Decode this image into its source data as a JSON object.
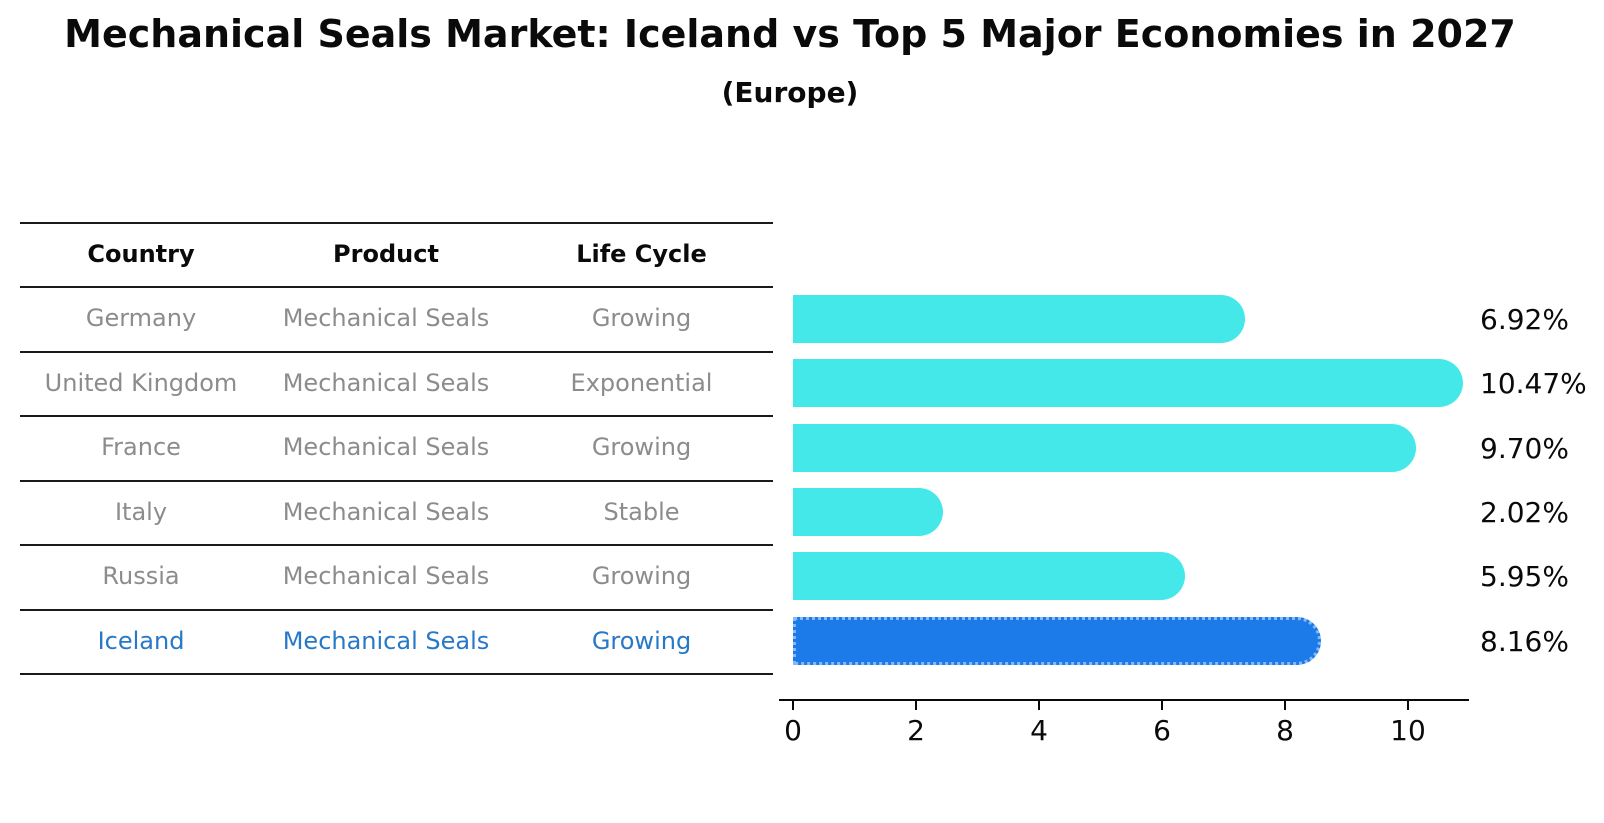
{
  "header": {
    "title": "Mechanical Seals Market: Iceland vs Top 5 Major Economies in 2027",
    "subtitle": "(Europe)"
  },
  "table": {
    "columns": [
      "Country",
      "Product",
      "Life Cycle"
    ],
    "rows": [
      {
        "country": "Germany",
        "product": "Mechanical Seals",
        "life_cycle": "Growing",
        "highlight": false
      },
      {
        "country": "United Kingdom",
        "product": "Mechanical Seals",
        "life_cycle": "Exponential",
        "highlight": false
      },
      {
        "country": "France",
        "product": "Mechanical Seals",
        "life_cycle": "Growing",
        "highlight": false
      },
      {
        "country": "Italy",
        "product": "Mechanical Seals",
        "life_cycle": "Stable",
        "highlight": false
      },
      {
        "country": "Russia",
        "product": "Mechanical Seals",
        "life_cycle": "Growing",
        "highlight": false
      },
      {
        "country": "Iceland",
        "product": "Mechanical Seals",
        "life_cycle": "Growing",
        "highlight": true
      }
    ]
  },
  "chart_data": {
    "type": "bar",
    "orientation": "horizontal",
    "title": "Mechanical Seals Market: Iceland vs Top 5 Major Economies in 2027",
    "subtitle": "(Europe)",
    "categories": [
      "Germany",
      "United Kingdom",
      "France",
      "Italy",
      "Russia",
      "Iceland"
    ],
    "values": [
      6.92,
      10.47,
      9.7,
      2.02,
      5.95,
      8.16
    ],
    "value_labels": [
      "6.92%",
      "10.47%",
      "9.70%",
      "2.02%",
      "5.95%",
      "8.16%"
    ],
    "xlim": [
      0,
      11
    ],
    "xticks": [
      "0",
      "2",
      "4",
      "6",
      "8",
      "10"
    ],
    "xtick_values": [
      0,
      2,
      4,
      6,
      8,
      10
    ],
    "grid": false,
    "legend": false,
    "bar_color": "#45e8e8",
    "highlight_color": "#1c7be8",
    "highlight_index": 5
  },
  "colors": {
    "title_text": "#0a0a0a",
    "table_text": "#8c8c8c",
    "highlight_text": "#2878c8",
    "divider": "#1a1a1a",
    "axis": "#0a0a0a"
  }
}
